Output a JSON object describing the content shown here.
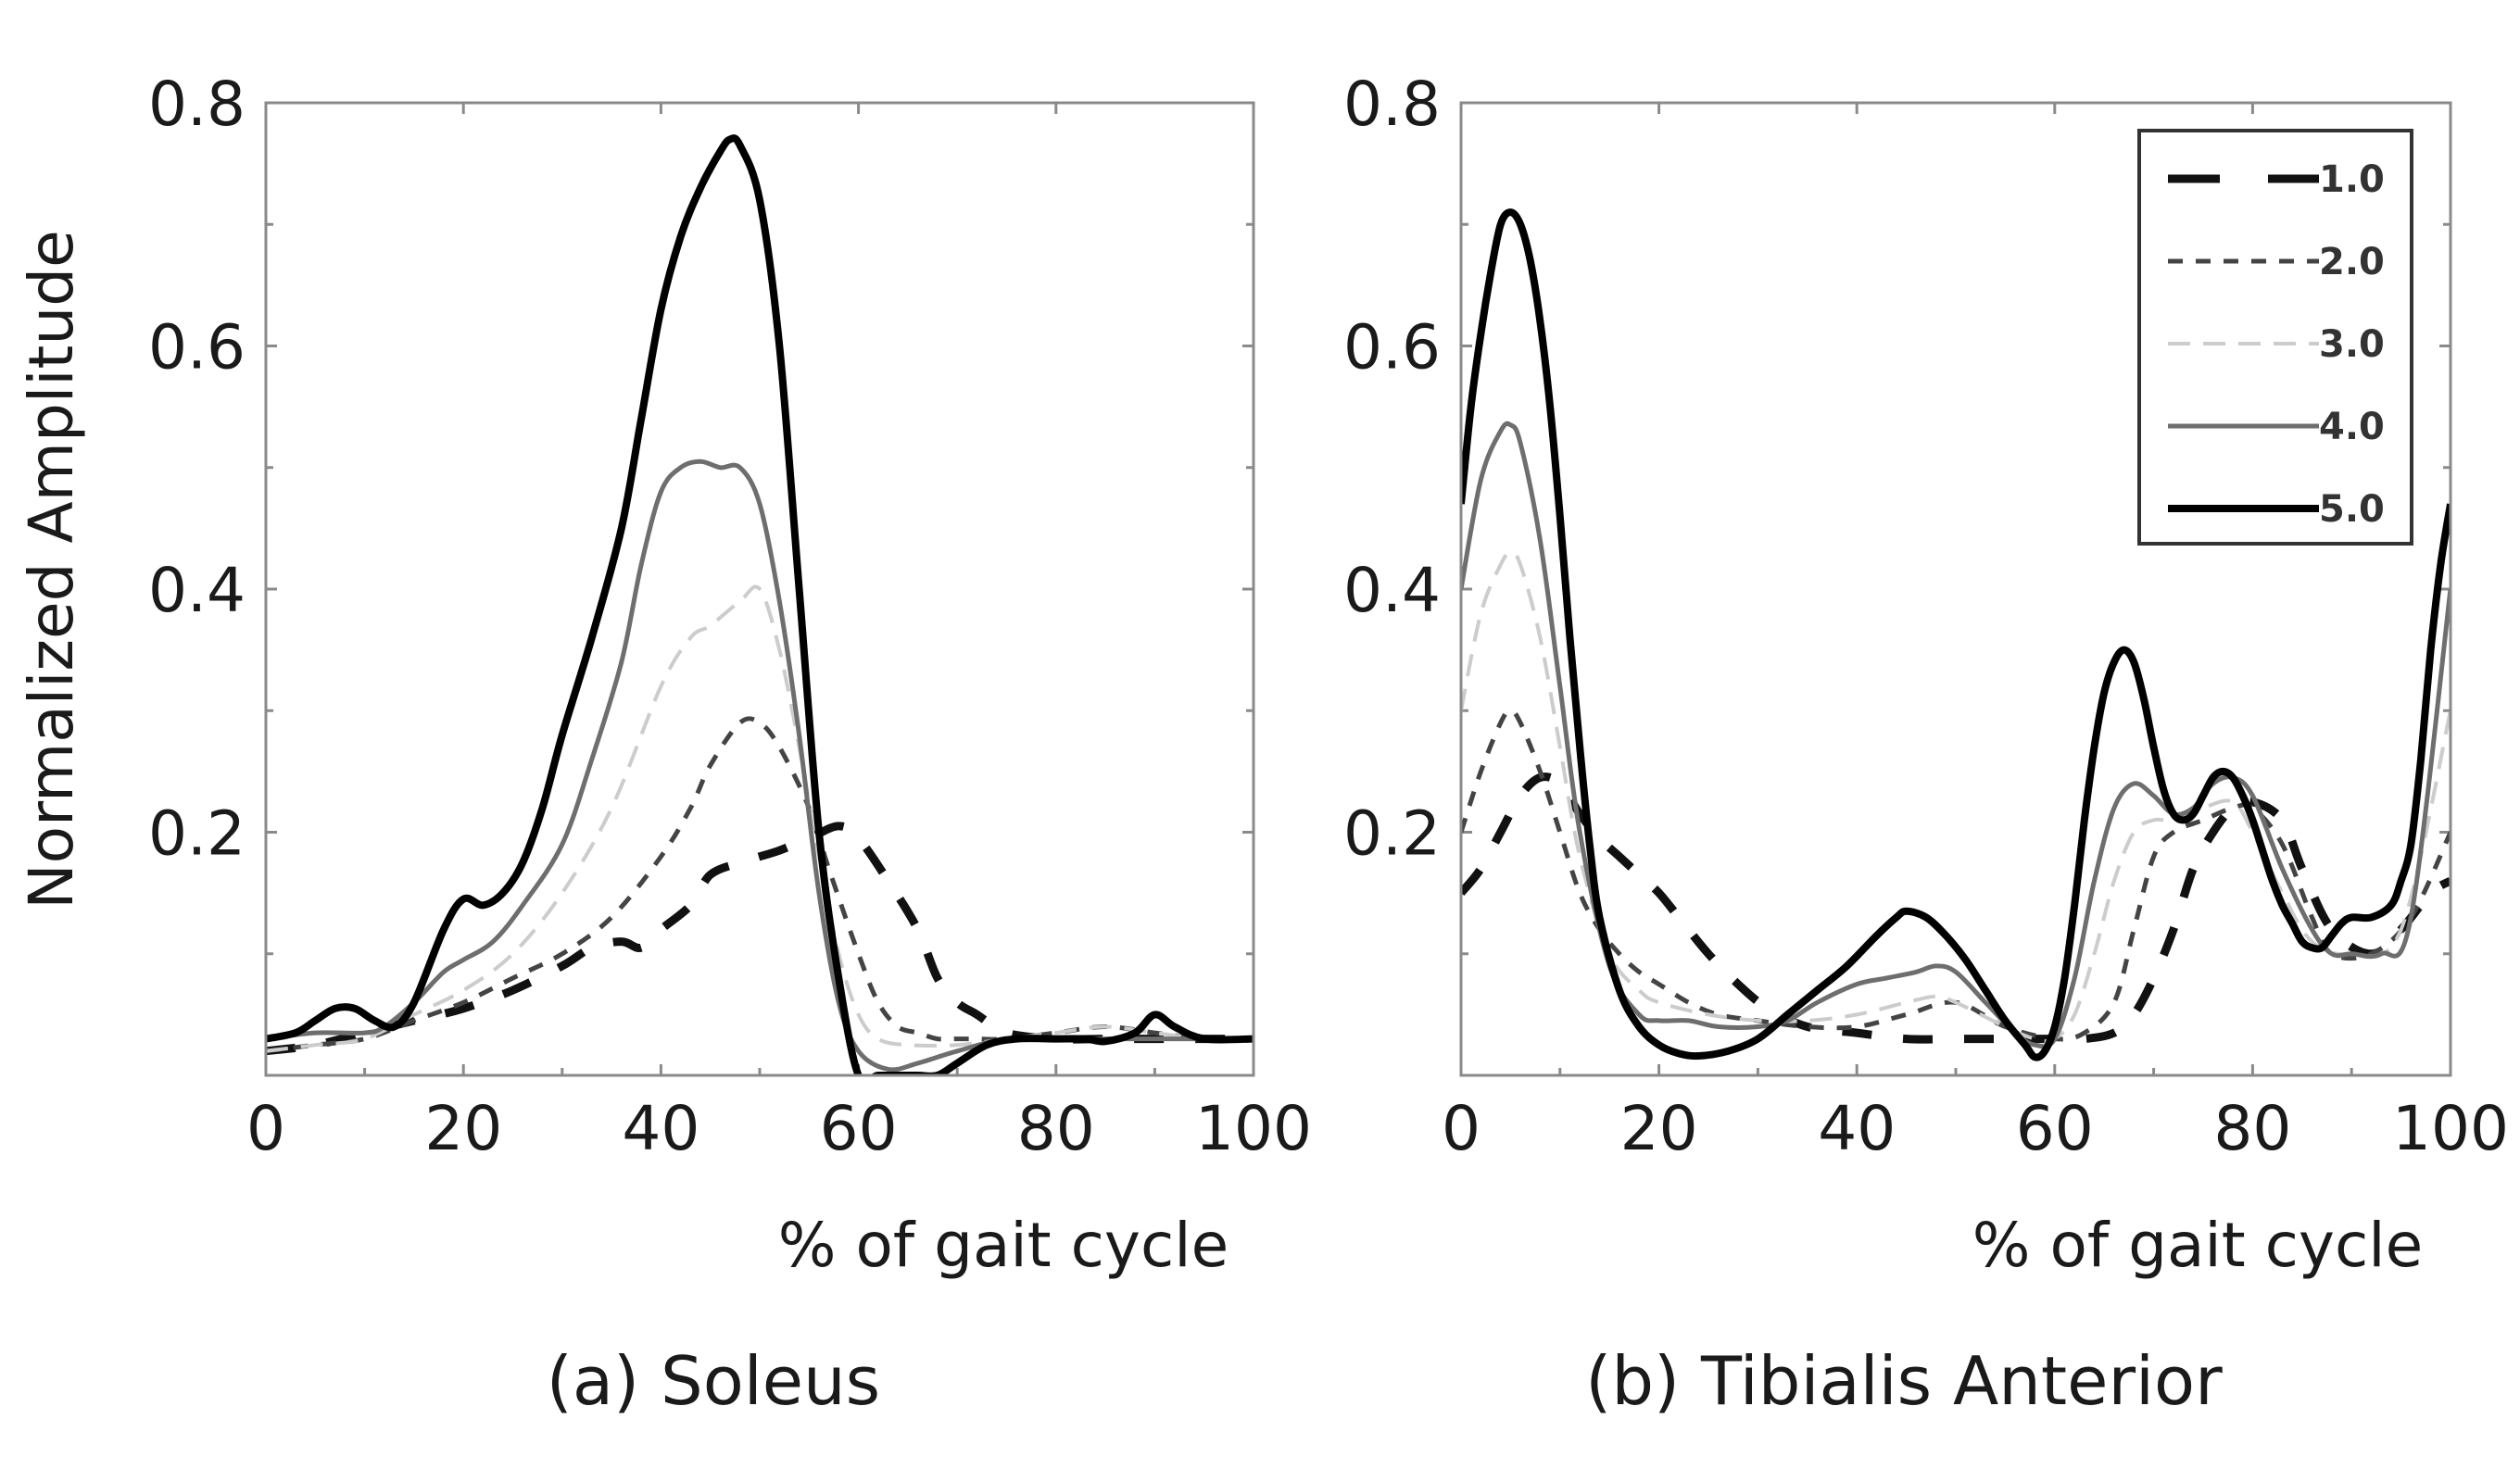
{
  "figure": {
    "ylabel": "Normalized Amplitude"
  },
  "legend": {
    "entries": [
      {
        "label": "1.0",
        "color": "#111111"
      },
      {
        "label": "2.0",
        "color": "#444444"
      },
      {
        "label": "3.0",
        "color": "#cccccc"
      },
      {
        "label": "4.0",
        "color": "#6e6e6e"
      },
      {
        "label": "5.0",
        "color": "#000000"
      }
    ]
  },
  "chart_data": [
    {
      "type": "line",
      "title": "(a) Soleus",
      "xlabel": "% of gait cycle",
      "ylabel": "Normalized Amplitude",
      "xlim": [
        0,
        100
      ],
      "ylim": [
        0,
        0.8
      ],
      "xticks": [
        0,
        20,
        40,
        60,
        80,
        100
      ],
      "xtick_labels": [
        "0",
        "20",
        "40",
        "60",
        "80",
        "100"
      ],
      "yticks": [
        0.2,
        0.4,
        0.6,
        0.8
      ],
      "ytick_labels": [
        "0.2",
        "0.4",
        "0.6",
        "0.8"
      ],
      "series": [
        {
          "name": "1.0",
          "x": [
            0,
            5,
            10,
            15,
            20,
            25,
            30,
            33,
            36,
            38,
            40,
            43,
            45,
            48,
            50,
            52,
            55,
            58,
            60,
            63,
            66,
            68,
            70,
            72,
            75,
            80,
            85,
            90,
            95,
            100
          ],
          "y": [
            0.02,
            0.025,
            0.035,
            0.045,
            0.055,
            0.07,
            0.09,
            0.105,
            0.11,
            0.105,
            0.12,
            0.14,
            0.165,
            0.175,
            0.18,
            0.185,
            0.195,
            0.205,
            0.195,
            0.16,
            0.12,
            0.08,
            0.06,
            0.05,
            0.035,
            0.03,
            0.03,
            0.03,
            0.03,
            0.03
          ]
        },
        {
          "name": "2.0",
          "x": [
            0,
            5,
            10,
            15,
            20,
            25,
            30,
            35,
            40,
            43,
            45,
            48,
            50,
            52,
            55,
            57,
            60,
            62,
            64,
            66,
            68,
            70,
            72,
            75,
            80,
            85,
            90,
            95,
            100
          ],
          "y": [
            0.02,
            0.025,
            0.03,
            0.045,
            0.06,
            0.08,
            0.1,
            0.13,
            0.18,
            0.22,
            0.255,
            0.29,
            0.29,
            0.27,
            0.22,
            0.17,
            0.1,
            0.06,
            0.04,
            0.035,
            0.03,
            0.03,
            0.03,
            0.03,
            0.035,
            0.04,
            0.035,
            0.03,
            0.03
          ]
        },
        {
          "name": "3.0",
          "x": [
            0,
            5,
            10,
            15,
            20,
            25,
            30,
            35,
            40,
            43,
            45,
            48,
            50,
            52,
            54,
            56,
            58,
            60,
            62,
            65,
            70,
            75,
            80,
            85,
            90,
            95,
            100
          ],
          "y": [
            0.02,
            0.025,
            0.03,
            0.05,
            0.07,
            0.1,
            0.15,
            0.22,
            0.32,
            0.36,
            0.37,
            0.39,
            0.4,
            0.35,
            0.27,
            0.18,
            0.1,
            0.05,
            0.03,
            0.025,
            0.025,
            0.03,
            0.035,
            0.04,
            0.035,
            0.03,
            0.03
          ]
        },
        {
          "name": "4.0",
          "x": [
            0,
            5,
            10,
            12,
            15,
            18,
            20,
            23,
            26,
            30,
            33,
            36,
            38,
            40,
            42,
            44,
            46,
            48,
            50,
            52,
            54,
            56,
            58,
            60,
            63,
            66,
            70,
            75,
            80,
            85,
            90,
            95,
            100
          ],
          "y": [
            0.03,
            0.035,
            0.035,
            0.04,
            0.06,
            0.085,
            0.095,
            0.11,
            0.14,
            0.19,
            0.26,
            0.34,
            0.42,
            0.48,
            0.5,
            0.505,
            0.5,
            0.5,
            0.47,
            0.39,
            0.28,
            0.15,
            0.06,
            0.02,
            0.005,
            0.01,
            0.02,
            0.03,
            0.03,
            0.03,
            0.03,
            0.03,
            0.03
          ]
        },
        {
          "name": "5.0",
          "x": [
            0,
            3,
            5,
            7,
            9,
            11,
            13,
            15,
            18,
            20,
            22,
            24,
            26,
            28,
            30,
            33,
            36,
            38,
            40,
            42,
            44,
            46,
            47,
            48,
            50,
            52,
            54,
            56,
            58,
            60,
            62,
            64,
            66,
            68,
            70,
            73,
            76,
            80,
            83,
            85,
            88,
            90,
            92,
            95,
            100
          ],
          "y": [
            0.03,
            0.035,
            0.045,
            0.055,
            0.055,
            0.045,
            0.04,
            0.06,
            0.12,
            0.145,
            0.14,
            0.15,
            0.175,
            0.22,
            0.28,
            0.36,
            0.45,
            0.54,
            0.63,
            0.69,
            0.73,
            0.76,
            0.77,
            0.765,
            0.72,
            0.6,
            0.4,
            0.2,
            0.08,
            0.0,
            0.0,
            0.0,
            0.0,
            0.0,
            0.01,
            0.025,
            0.03,
            0.03,
            0.03,
            0.028,
            0.035,
            0.05,
            0.04,
            0.03,
            0.03
          ]
        }
      ]
    },
    {
      "type": "line",
      "title": "(b) Tibialis Anterior",
      "xlabel": "% of gait cycle",
      "ylabel": "",
      "xlim": [
        0,
        100
      ],
      "ylim": [
        0,
        0.8
      ],
      "xticks": [
        0,
        20,
        40,
        60,
        80,
        100
      ],
      "xtick_labels": [
        "0",
        "20",
        "40",
        "60",
        "80",
        "100"
      ],
      "yticks": [
        0.2,
        0.4,
        0.6,
        0.8
      ],
      "ytick_labels": [
        "0.2",
        "0.4",
        "0.6",
        "0.8"
      ],
      "legend_position": "top-right",
      "series": [
        {
          "name": "1.0",
          "x": [
            0,
            2,
            4,
            6,
            8,
            10,
            12,
            14,
            16,
            18,
            20,
            22,
            25,
            28,
            31,
            35,
            40,
            45,
            50,
            55,
            60,
            63,
            66,
            68,
            70,
            72,
            74,
            76,
            78,
            80,
            83,
            85,
            88,
            92,
            95,
            98,
            100
          ],
          "y": [
            0.15,
            0.17,
            0.2,
            0.23,
            0.245,
            0.24,
            0.215,
            0.195,
            0.18,
            0.165,
            0.15,
            0.13,
            0.1,
            0.075,
            0.055,
            0.04,
            0.035,
            0.03,
            0.03,
            0.03,
            0.03,
            0.03,
            0.035,
            0.05,
            0.08,
            0.12,
            0.17,
            0.2,
            0.22,
            0.225,
            0.21,
            0.17,
            0.12,
            0.1,
            0.12,
            0.15,
            0.16
          ]
        },
        {
          "name": "2.0",
          "x": [
            0,
            2,
            4,
            5,
            6,
            8,
            10,
            12,
            14,
            16,
            18,
            20,
            23,
            26,
            30,
            35,
            40,
            45,
            50,
            55,
            60,
            63,
            66,
            68,
            70,
            72,
            75,
            78,
            80,
            83,
            86,
            88,
            92,
            96,
            100
          ],
          "y": [
            0.2,
            0.25,
            0.29,
            0.3,
            0.29,
            0.25,
            0.2,
            0.15,
            0.12,
            0.1,
            0.085,
            0.075,
            0.06,
            0.05,
            0.045,
            0.04,
            0.04,
            0.05,
            0.06,
            0.04,
            0.03,
            0.035,
            0.06,
            0.12,
            0.18,
            0.2,
            0.21,
            0.22,
            0.22,
            0.19,
            0.13,
            0.1,
            0.1,
            0.13,
            0.2
          ]
        },
        {
          "name": "3.0",
          "x": [
            0,
            2,
            4,
            5,
            6,
            8,
            10,
            12,
            15,
            18,
            20,
            25,
            30,
            35,
            40,
            45,
            48,
            50,
            55,
            58,
            60,
            62,
            64,
            66,
            68,
            70,
            72,
            75,
            78,
            80,
            83,
            86,
            90,
            95,
            100
          ],
          "y": [
            0.3,
            0.38,
            0.42,
            0.43,
            0.42,
            0.36,
            0.27,
            0.18,
            0.1,
            0.07,
            0.06,
            0.05,
            0.045,
            0.045,
            0.05,
            0.06,
            0.065,
            0.06,
            0.04,
            0.03,
            0.03,
            0.05,
            0.1,
            0.16,
            0.2,
            0.21,
            0.21,
            0.22,
            0.225,
            0.2,
            0.15,
            0.11,
            0.1,
            0.12,
            0.3
          ]
        },
        {
          "name": "4.0",
          "x": [
            0,
            2,
            4,
            5,
            6,
            8,
            10,
            12,
            15,
            18,
            20,
            23,
            26,
            30,
            33,
            36,
            40,
            43,
            46,
            48,
            50,
            53,
            56,
            58,
            60,
            62,
            64,
            66,
            68,
            70,
            72,
            74,
            76,
            78,
            80,
            83,
            86,
            88,
            90,
            93,
            96,
            100
          ],
          "y": [
            0.4,
            0.49,
            0.53,
            0.535,
            0.52,
            0.44,
            0.32,
            0.2,
            0.09,
            0.05,
            0.045,
            0.045,
            0.04,
            0.04,
            0.045,
            0.06,
            0.075,
            0.08,
            0.085,
            0.09,
            0.085,
            0.06,
            0.035,
            0.025,
            0.03,
            0.08,
            0.16,
            0.22,
            0.24,
            0.23,
            0.215,
            0.22,
            0.24,
            0.245,
            0.23,
            0.17,
            0.12,
            0.1,
            0.1,
            0.1,
            0.13,
            0.4
          ]
        },
        {
          "name": "5.0",
          "x": [
            0,
            1,
            2,
            3,
            4,
            5,
            6,
            7,
            8,
            9,
            10,
            11,
            12,
            13,
            14,
            16,
            18,
            20,
            22,
            24,
            27,
            30,
            33,
            36,
            39,
            42,
            44,
            45,
            47,
            49,
            51,
            53,
            55,
            57,
            58,
            59,
            60,
            61,
            62,
            63,
            64,
            65,
            66,
            67,
            68,
            69,
            70,
            71,
            72,
            73,
            74,
            75,
            76,
            77,
            78,
            79,
            80,
            81,
            82,
            83,
            84,
            85,
            86,
            87,
            88,
            89,
            90,
            92,
            94,
            95,
            96,
            97,
            98,
            99,
            100
          ],
          "y": [
            0.47,
            0.55,
            0.61,
            0.66,
            0.7,
            0.71,
            0.7,
            0.67,
            0.62,
            0.55,
            0.46,
            0.36,
            0.27,
            0.19,
            0.13,
            0.07,
            0.04,
            0.025,
            0.018,
            0.016,
            0.02,
            0.03,
            0.05,
            0.07,
            0.09,
            0.115,
            0.13,
            0.135,
            0.13,
            0.115,
            0.095,
            0.07,
            0.045,
            0.025,
            0.015,
            0.02,
            0.04,
            0.08,
            0.14,
            0.21,
            0.27,
            0.315,
            0.34,
            0.35,
            0.34,
            0.31,
            0.27,
            0.235,
            0.215,
            0.21,
            0.215,
            0.23,
            0.245,
            0.25,
            0.245,
            0.23,
            0.21,
            0.185,
            0.16,
            0.14,
            0.125,
            0.11,
            0.105,
            0.105,
            0.115,
            0.125,
            0.13,
            0.13,
            0.14,
            0.16,
            0.19,
            0.26,
            0.35,
            0.42,
            0.47
          ]
        }
      ]
    }
  ]
}
